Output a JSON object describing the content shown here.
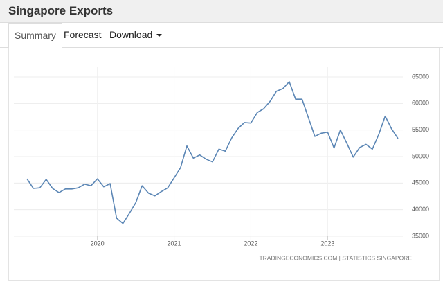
{
  "header": {
    "title": "Singapore Exports"
  },
  "tabs": [
    "Summary",
    "Forecast",
    "Download"
  ],
  "chart_data": {
    "type": "line",
    "categories": [
      null,
      null,
      null,
      null,
      null,
      null,
      null,
      null,
      null,
      null,
      null,
      "2020",
      null,
      null,
      null,
      null,
      null,
      null,
      null,
      null,
      null,
      null,
      null,
      "2021",
      null,
      null,
      null,
      null,
      null,
      null,
      null,
      null,
      null,
      null,
      null,
      "2022",
      null,
      null,
      null,
      null,
      null,
      null,
      null,
      null,
      null,
      null,
      null,
      "2023",
      null,
      null,
      null,
      null,
      null,
      null,
      null,
      null,
      null,
      null,
      null
    ],
    "values": [
      45800,
      44000,
      44100,
      45700,
      44000,
      43200,
      43900,
      43900,
      44100,
      44800,
      44500,
      45800,
      44300,
      44900,
      38400,
      37400,
      39300,
      41300,
      44500,
      43100,
      42600,
      43400,
      44100,
      46000,
      47900,
      52000,
      49700,
      50300,
      49500,
      49000,
      51400,
      51000,
      53500,
      55300,
      56400,
      56300,
      58300,
      59000,
      60400,
      62300,
      62800,
      64100,
      60800,
      60800,
      57300,
      53800,
      54400,
      54600,
      51600,
      55000,
      52500,
      49900,
      51700,
      52300,
      51400,
      54200,
      57600,
      55200,
      53400
    ],
    "color": "#5b86b5",
    "ylim": [
      35000,
      65000
    ],
    "yticks": [
      35000,
      40000,
      45000,
      50000,
      55000,
      60000,
      65000
    ],
    "grid": true,
    "source": "TRADINGECONOMICS.COM | STATISTICS SINGAPORE"
  }
}
